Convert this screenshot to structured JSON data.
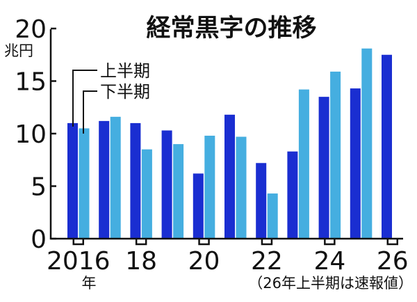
{
  "chart_data": {
    "type": "bar",
    "title": "経常黒字の推移",
    "ylabel": "兆円",
    "ylim": [
      0,
      20
    ],
    "yticks": [
      "0",
      "5",
      "10",
      "15",
      "20"
    ],
    "x": [
      "2016",
      "2017",
      "2018",
      "2019",
      "2020",
      "2021",
      "2022",
      "2023",
      "2024",
      "2025",
      "2026"
    ],
    "xtick_labels": [
      {
        "index": 0,
        "label": "2016"
      },
      {
        "index": 2,
        "label": "18"
      },
      {
        "index": 4,
        "label": "20"
      },
      {
        "index": 6,
        "label": "22"
      },
      {
        "index": 8,
        "label": "24"
      },
      {
        "index": 10,
        "label": "26"
      }
    ],
    "xunit": "年",
    "series": [
      {
        "name": "上半期",
        "color": "#1a2ed1",
        "values": [
          11.0,
          11.2,
          11.0,
          10.3,
          6.2,
          11.8,
          7.2,
          8.3,
          13.5,
          14.3,
          17.5
        ]
      },
      {
        "name": "下半期",
        "color": "#45aee0",
        "values": [
          10.5,
          11.6,
          8.5,
          9.0,
          9.8,
          9.7,
          4.3,
          14.2,
          15.9,
          18.1,
          null
        ]
      }
    ],
    "note": "（26年上半期は速報値）",
    "grid": false
  }
}
